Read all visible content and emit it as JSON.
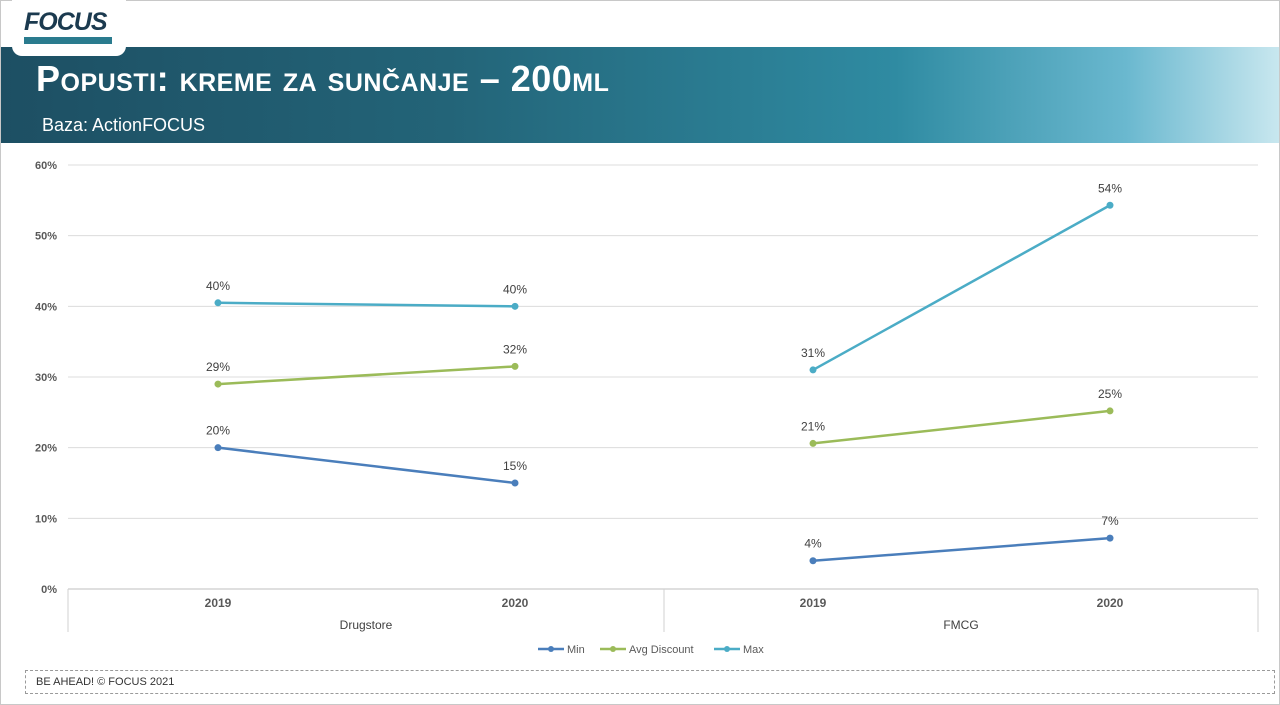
{
  "header": {
    "logo_text": "FOCUS",
    "title": "Popusti: kreme za sunčanje – 200ml",
    "subtitle": "Baza: ActionFOCUS"
  },
  "footer": {
    "text": "BE AHEAD! © FOCUS 2021"
  },
  "colors": {
    "min": "#4a7ebb",
    "avg": "#9bbb59",
    "max": "#4bacc6"
  },
  "chart_data": {
    "type": "line",
    "groups": [
      {
        "name": "Drugstore",
        "categories": [
          "2019",
          "2020"
        ]
      },
      {
        "name": "FMCG",
        "categories": [
          "2019",
          "2020"
        ]
      }
    ],
    "series": [
      {
        "name": "Min",
        "values": [
          [
            0.2,
            0.15
          ],
          [
            0.04,
            0.072
          ]
        ],
        "labels": [
          [
            "20%",
            "15%"
          ],
          [
            "4%",
            "7%"
          ]
        ]
      },
      {
        "name": "Avg Discount",
        "values": [
          [
            0.29,
            0.315
          ],
          [
            0.206,
            0.252
          ]
        ],
        "labels": [
          [
            "29%",
            "32%"
          ],
          [
            "21%",
            "25%"
          ]
        ]
      },
      {
        "name": "Max",
        "values": [
          [
            0.405,
            0.4
          ],
          [
            0.31,
            0.543
          ]
        ],
        "labels": [
          [
            "40%",
            "40%"
          ],
          [
            "31%",
            "54%"
          ]
        ]
      }
    ],
    "ylim": [
      0,
      0.6
    ],
    "yticks": [
      "0%",
      "10%",
      "20%",
      "30%",
      "40%",
      "50%",
      "60%"
    ],
    "grid": true,
    "legend": "bottom"
  }
}
